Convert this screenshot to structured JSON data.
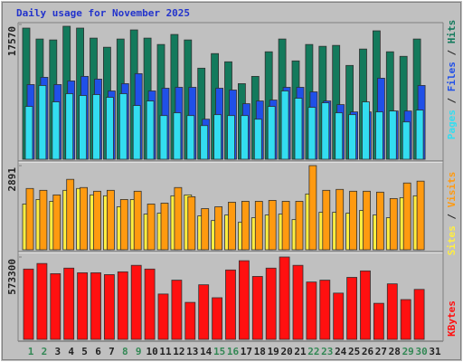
{
  "chart_data": [
    {
      "type": "bar",
      "title": "Daily usage for November 2025",
      "ylim": [
        0,
        17570
      ],
      "yticks": [
        17570
      ],
      "series": [
        {
          "name": "Hits",
          "color": "#137a5c",
          "values": [
            17094,
            15670,
            15551,
            17332,
            17094,
            15789,
            14601,
            15670,
            16857,
            15789,
            14958,
            16263,
            15551,
            11871,
            13770,
            12702,
            9853,
            10803,
            14008,
            15670,
            12821,
            14958,
            14720,
            14839,
            12227,
            14364,
            16738,
            14008,
            13414,
            15670,
            0
          ]
        },
        {
          "name": "Files",
          "color": "#2050e8",
          "values": [
            9734,
            10683,
            9734,
            10208,
            10803,
            10446,
            8903,
            9853,
            11158,
            8903,
            9259,
            9378,
            9378,
            5223,
            9259,
            9022,
            7241,
            7597,
            7716,
            9378,
            9378,
            8784,
            7597,
            7122,
            6173,
            6173,
            10565,
            6291,
            6291,
            9615,
            0
          ]
        },
        {
          "name": "Pages",
          "color": "#33ddf0",
          "values": [
            6885,
            9615,
            7478,
            8547,
            8309,
            8428,
            8072,
            8547,
            7004,
            7597,
            5698,
            6054,
            5698,
            4392,
            5817,
            5698,
            5698,
            5223,
            6885,
            8903,
            7953,
            6766,
            7360,
            6054,
            5817,
            7478,
            6173,
            6291,
            4867,
            6410,
            0
          ]
        }
      ]
    },
    {
      "type": "bar",
      "ylim": [
        0,
        2891
      ],
      "yticks": [
        2891
      ],
      "series": [
        {
          "name": "Visits",
          "color": "#ff9a10",
          "values": [
            2105,
            2042,
            1885,
            2419,
            2137,
            2011,
            2042,
            1728,
            2011,
            1571,
            1602,
            2137,
            1822,
            1414,
            1477,
            1634,
            1665,
            1665,
            1697,
            1665,
            1665,
            2891,
            2042,
            2074,
            2011,
            2011,
            1980,
            1760,
            2294,
            2357,
            0
          ]
        },
        {
          "name": "Sites",
          "color": "#ffee40",
          "values": [
            1571,
            1728,
            1665,
            2042,
            2105,
            1885,
            1854,
            1477,
            1728,
            1225,
            1257,
            1854,
            1885,
            1163,
            1005,
            1194,
            943,
            1100,
            1194,
            1225,
            1037,
            1917,
            1288,
            1288,
            1257,
            1351,
            1194,
            1100,
            1791,
            1854,
            0
          ]
        }
      ]
    },
    {
      "type": "bar",
      "ylim": [
        0,
        573300
      ],
      "yticks": [
        573300
      ],
      "categories": [
        "1",
        "2",
        "3",
        "4",
        "5",
        "6",
        "7",
        "8",
        "9",
        "10",
        "11",
        "12",
        "13",
        "14",
        "15",
        "16",
        "17",
        "18",
        "19",
        "20",
        "21",
        "22",
        "23",
        "24",
        "25",
        "26",
        "27",
        "28",
        "29",
        "30",
        "31"
      ],
      "category_colors": [
        "#338855",
        "#338855",
        "#222222",
        "#222222",
        "#222222",
        "#222222",
        "#222222",
        "#338855",
        "#338855",
        "#222222",
        "#222222",
        "#222222",
        "#222222",
        "#222222",
        "#338855",
        "#338855",
        "#222222",
        "#222222",
        "#222222",
        "#222222",
        "#222222",
        "#338855",
        "#338855",
        "#222222",
        "#222222",
        "#222222",
        "#222222",
        "#222222",
        "#338855",
        "#338855",
        "#222222"
      ],
      "series": [
        {
          "name": "KBytes",
          "color": "#ff1010",
          "values": [
            489600,
            528200,
            457400,
            496000,
            463800,
            463800,
            450900,
            470300,
            515400,
            489600,
            315700,
            412300,
            257700,
            380100,
            289900,
            483200,
            547600,
            438100,
            496000,
            573300,
            515400,
            399400,
            412300,
            322100,
            431600,
            476700,
            251200,
            386500,
            277000,
            347900,
            0
          ]
        }
      ]
    }
  ]
}
